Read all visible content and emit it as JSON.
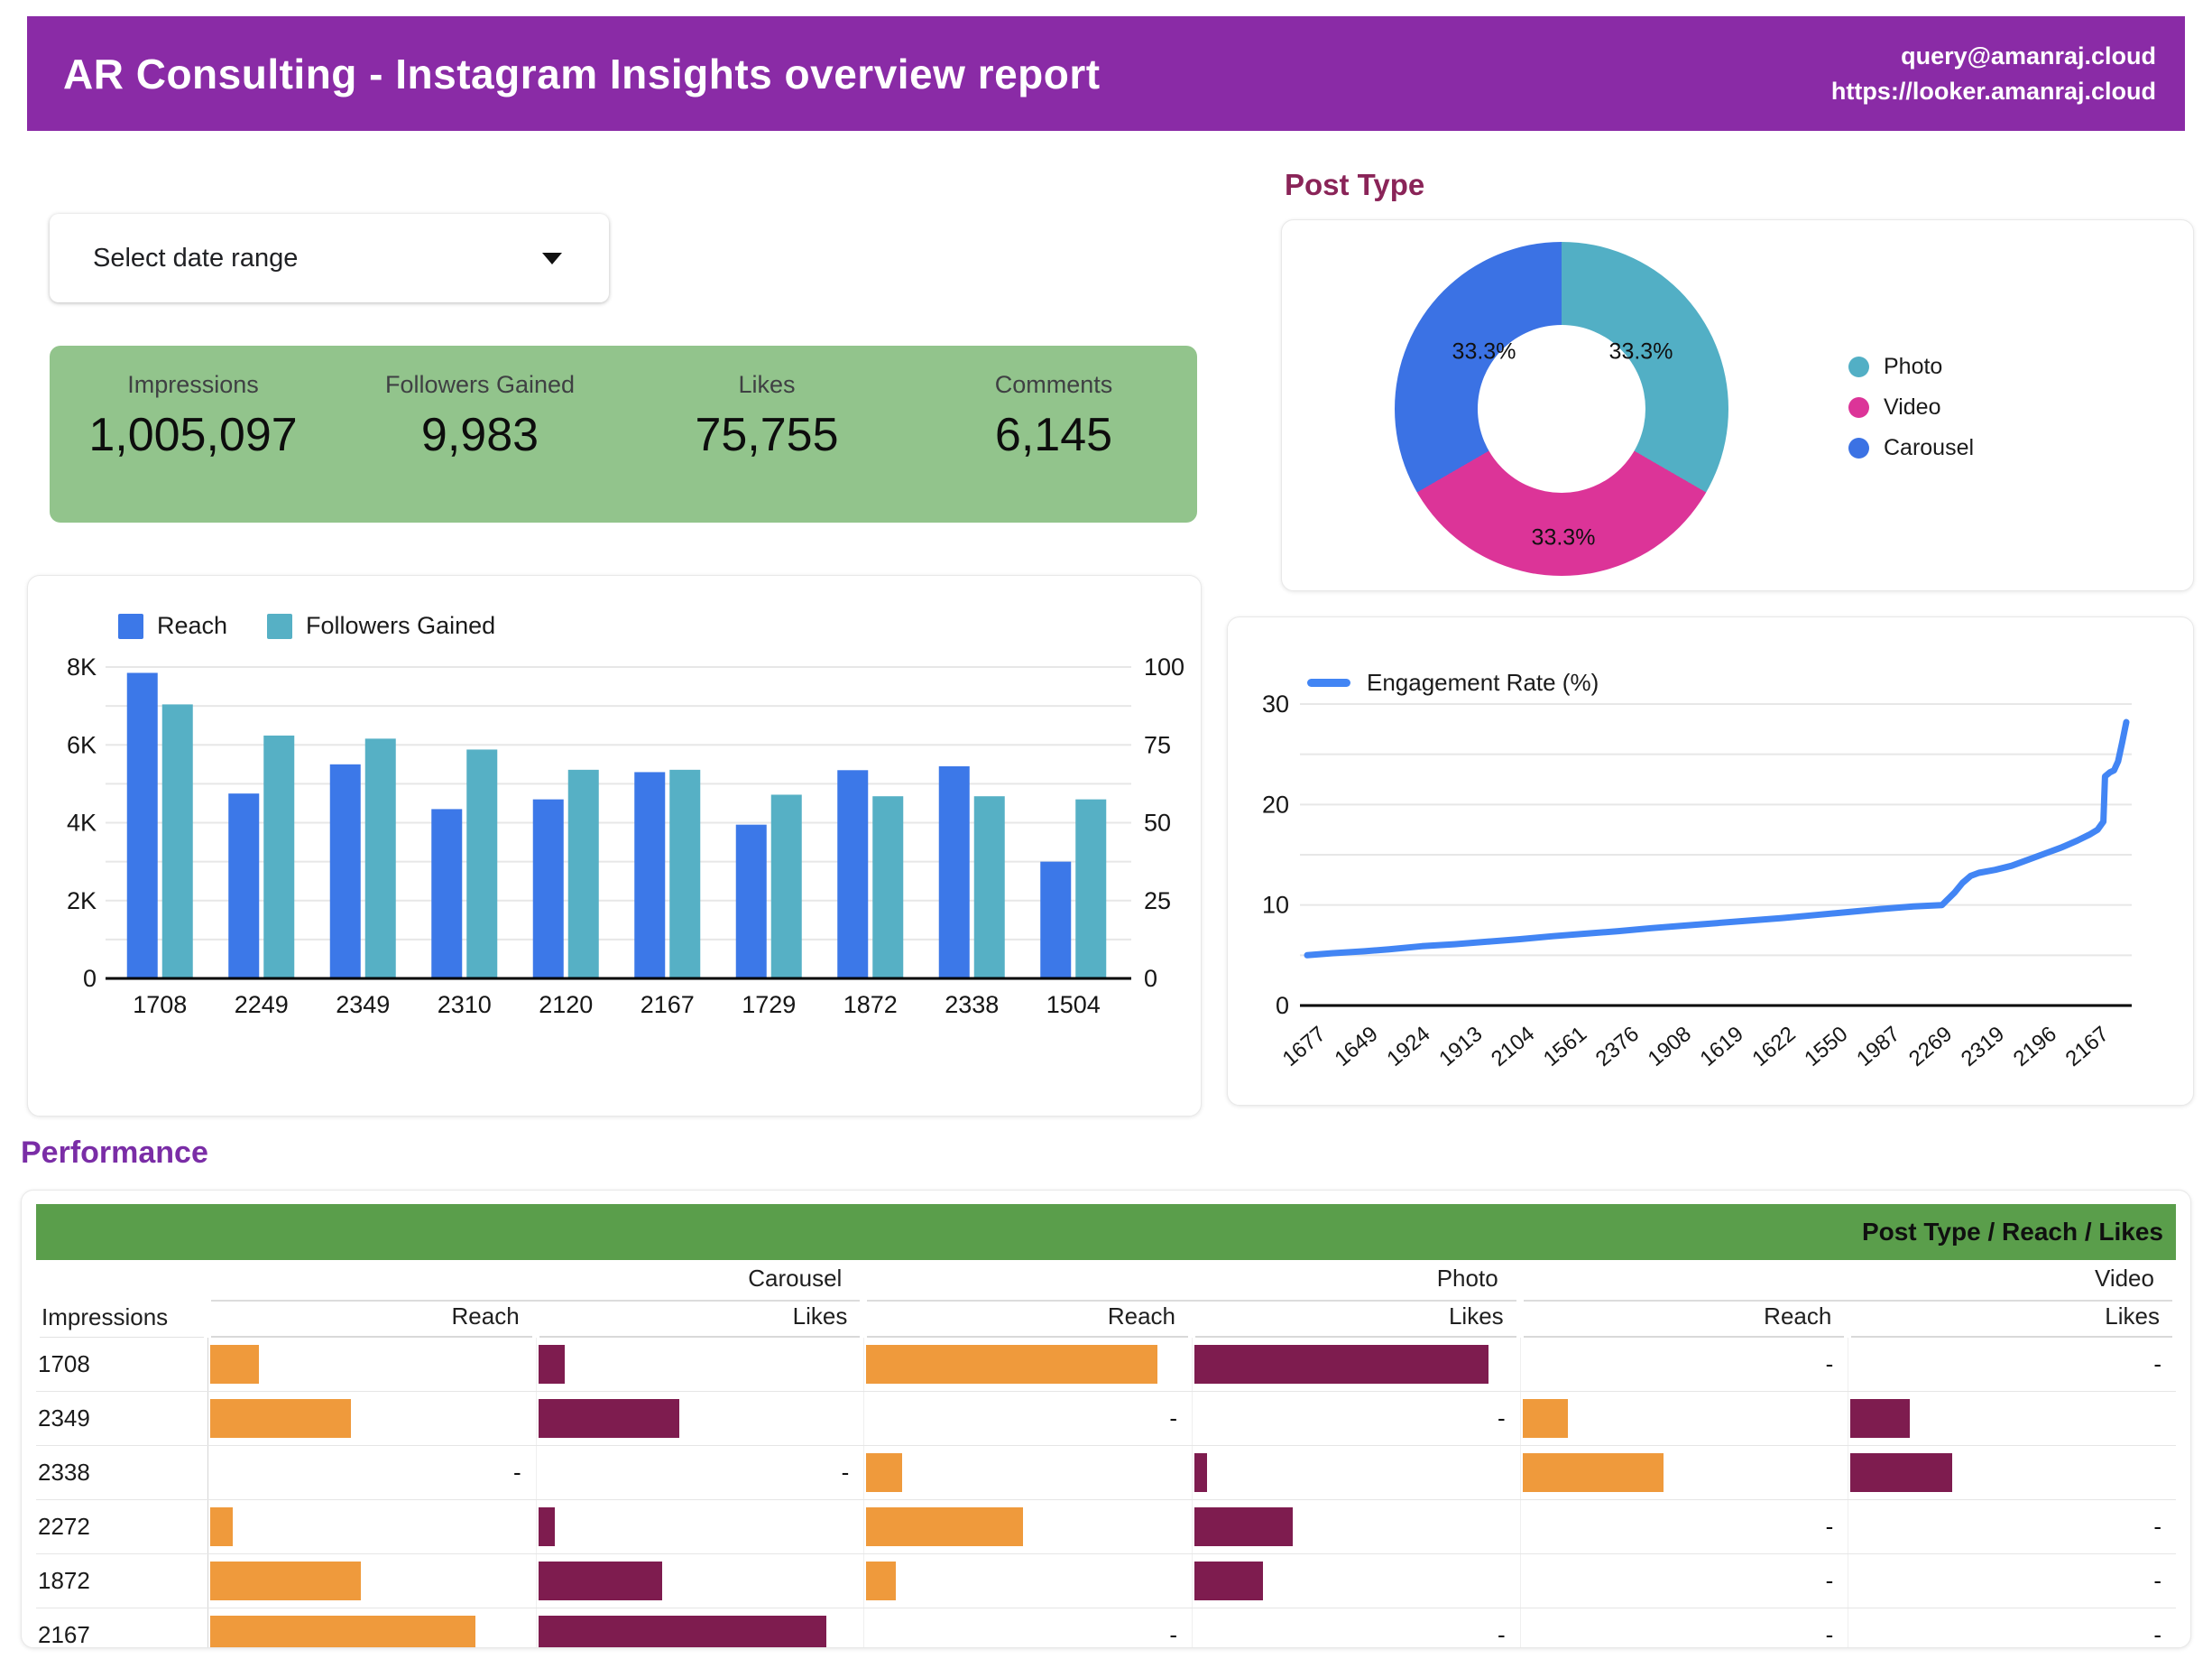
{
  "header": {
    "title": "AR Consulting - Instagram Insights overview report",
    "contact_email": "query@amanraj.cloud",
    "contact_url": "https://looker.amanraj.cloud"
  },
  "controls": {
    "date_range_placeholder": "Select date range"
  },
  "sections": {
    "post_type_title": "Post Type",
    "performance_title": "Performance"
  },
  "scorecard": {
    "metrics": [
      {
        "label": "Impressions",
        "value": "1,005,097"
      },
      {
        "label": "Followers Gained",
        "value": "9,983"
      },
      {
        "label": "Likes",
        "value": "75,755"
      },
      {
        "label": "Comments",
        "value": "6,145"
      }
    ]
  },
  "colors": {
    "header_purple": "#8a2ba6",
    "performance_title_purple": "#7a2da6",
    "post_type_title_maroon": "#8a2458",
    "scorecard_green": "#92c48c",
    "table_header_green": "#5a9e4b",
    "bar_blue": "#3c78e8",
    "bar_teal": "#56b0c5",
    "donut_teal": "#52afc5",
    "donut_magenta": "#dc3498",
    "donut_blue": "#3b72e4",
    "line_blue": "#4285f4",
    "table_orange": "#ef9a3c",
    "table_maroon": "#7e1c4f"
  },
  "chart_data": [
    {
      "type": "bar",
      "categories": [
        "1708",
        "2249",
        "2349",
        "2310",
        "2120",
        "2167",
        "1729",
        "1872",
        "2338",
        "1504"
      ],
      "series": [
        {
          "name": "Reach",
          "axis": "left",
          "color": "#3c78e8",
          "values_k": [
            7.85,
            4.75,
            5.5,
            4.35,
            4.6,
            5.3,
            3.95,
            5.35,
            5.45,
            3.0
          ]
        },
        {
          "name": "Followers Gained",
          "axis": "right",
          "color": "#56b0c5",
          "values": [
            88,
            78,
            77,
            73.5,
            67,
            67,
            59,
            58.5,
            58.5,
            57.5
          ]
        }
      ],
      "left_axis": {
        "ticks": [
          "0",
          "2K",
          "4K",
          "6K",
          "8K"
        ],
        "max_k": 8
      },
      "right_axis": {
        "ticks": [
          "0",
          "25",
          "50",
          "75",
          "100"
        ],
        "max": 100
      },
      "grid": true,
      "legend_position": "top-left"
    },
    {
      "type": "pie",
      "labels": [
        "Photo",
        "Video",
        "Carousel"
      ],
      "values": [
        33.3,
        33.3,
        33.3
      ],
      "slice_labels": [
        "33.3%",
        "33.3%",
        "33.3%"
      ],
      "colors": [
        "#52afc5",
        "#dc3498",
        "#3b72e4"
      ],
      "donut": true,
      "legend_position": "right"
    },
    {
      "type": "line",
      "series_name": "Engagement Rate (%)",
      "color": "#4285f4",
      "ylim": [
        0,
        30
      ],
      "y_ticks": [
        "0",
        "10",
        "20",
        "30"
      ],
      "x_labels": [
        "1677",
        "1649",
        "1924",
        "1913",
        "2104",
        "1561",
        "2376",
        "1908",
        "1619",
        "1622",
        "1550",
        "1987",
        "2269",
        "2319",
        "2196",
        "2167"
      ],
      "points": [
        [
          0.0,
          5.0
        ],
        [
          0.03,
          5.2
        ],
        [
          0.07,
          5.4
        ],
        [
          0.1,
          5.6
        ],
        [
          0.14,
          5.9
        ],
        [
          0.18,
          6.1
        ],
        [
          0.22,
          6.35
        ],
        [
          0.26,
          6.6
        ],
        [
          0.3,
          6.9
        ],
        [
          0.34,
          7.15
        ],
        [
          0.38,
          7.4
        ],
        [
          0.42,
          7.7
        ],
        [
          0.46,
          7.95
        ],
        [
          0.5,
          8.2
        ],
        [
          0.54,
          8.45
        ],
        [
          0.58,
          8.7
        ],
        [
          0.62,
          9.0
        ],
        [
          0.66,
          9.3
        ],
        [
          0.7,
          9.6
        ],
        [
          0.74,
          9.85
        ],
        [
          0.775,
          10.0
        ],
        [
          0.78,
          10.4
        ],
        [
          0.79,
          11.2
        ],
        [
          0.8,
          12.2
        ],
        [
          0.81,
          12.9
        ],
        [
          0.82,
          13.2
        ],
        [
          0.84,
          13.5
        ],
        [
          0.86,
          13.9
        ],
        [
          0.88,
          14.5
        ],
        [
          0.9,
          15.1
        ],
        [
          0.92,
          15.7
        ],
        [
          0.94,
          16.4
        ],
        [
          0.955,
          17.0
        ],
        [
          0.965,
          17.5
        ],
        [
          0.972,
          18.3
        ],
        [
          0.974,
          22.8
        ],
        [
          0.98,
          23.2
        ],
        [
          0.985,
          23.4
        ],
        [
          0.99,
          24.3
        ],
        [
          0.995,
          26.2
        ],
        [
          1.0,
          28.2
        ]
      ],
      "grid": true,
      "legend_position": "top-left"
    }
  ],
  "performance_table": {
    "corner_header": "Post Type / Reach / Likes",
    "row_header": "Impressions",
    "groups": [
      "Carousel",
      "Photo",
      "Video"
    ],
    "sub_columns": [
      "Reach",
      "Likes"
    ],
    "empty_placeholder": "-",
    "bar_colors": {
      "reach": "#ef9a3c",
      "likes": "#7e1c4f"
    },
    "rows": [
      {
        "impressions": "1708",
        "cells": [
          15,
          8,
          89,
          90,
          null,
          null
        ]
      },
      {
        "impressions": "2349",
        "cells": [
          43,
          43,
          null,
          null,
          14,
          18
        ]
      },
      {
        "impressions": "2338",
        "cells": [
          null,
          null,
          11,
          4,
          43,
          31
        ]
      },
      {
        "impressions": "2272",
        "cells": [
          7,
          5,
          48,
          30,
          null,
          null
        ]
      },
      {
        "impressions": "1872",
        "cells": [
          46,
          38,
          9,
          21,
          null,
          null
        ]
      },
      {
        "impressions": "2167",
        "cells": [
          81,
          88,
          null,
          null,
          null,
          null
        ]
      }
    ]
  }
}
